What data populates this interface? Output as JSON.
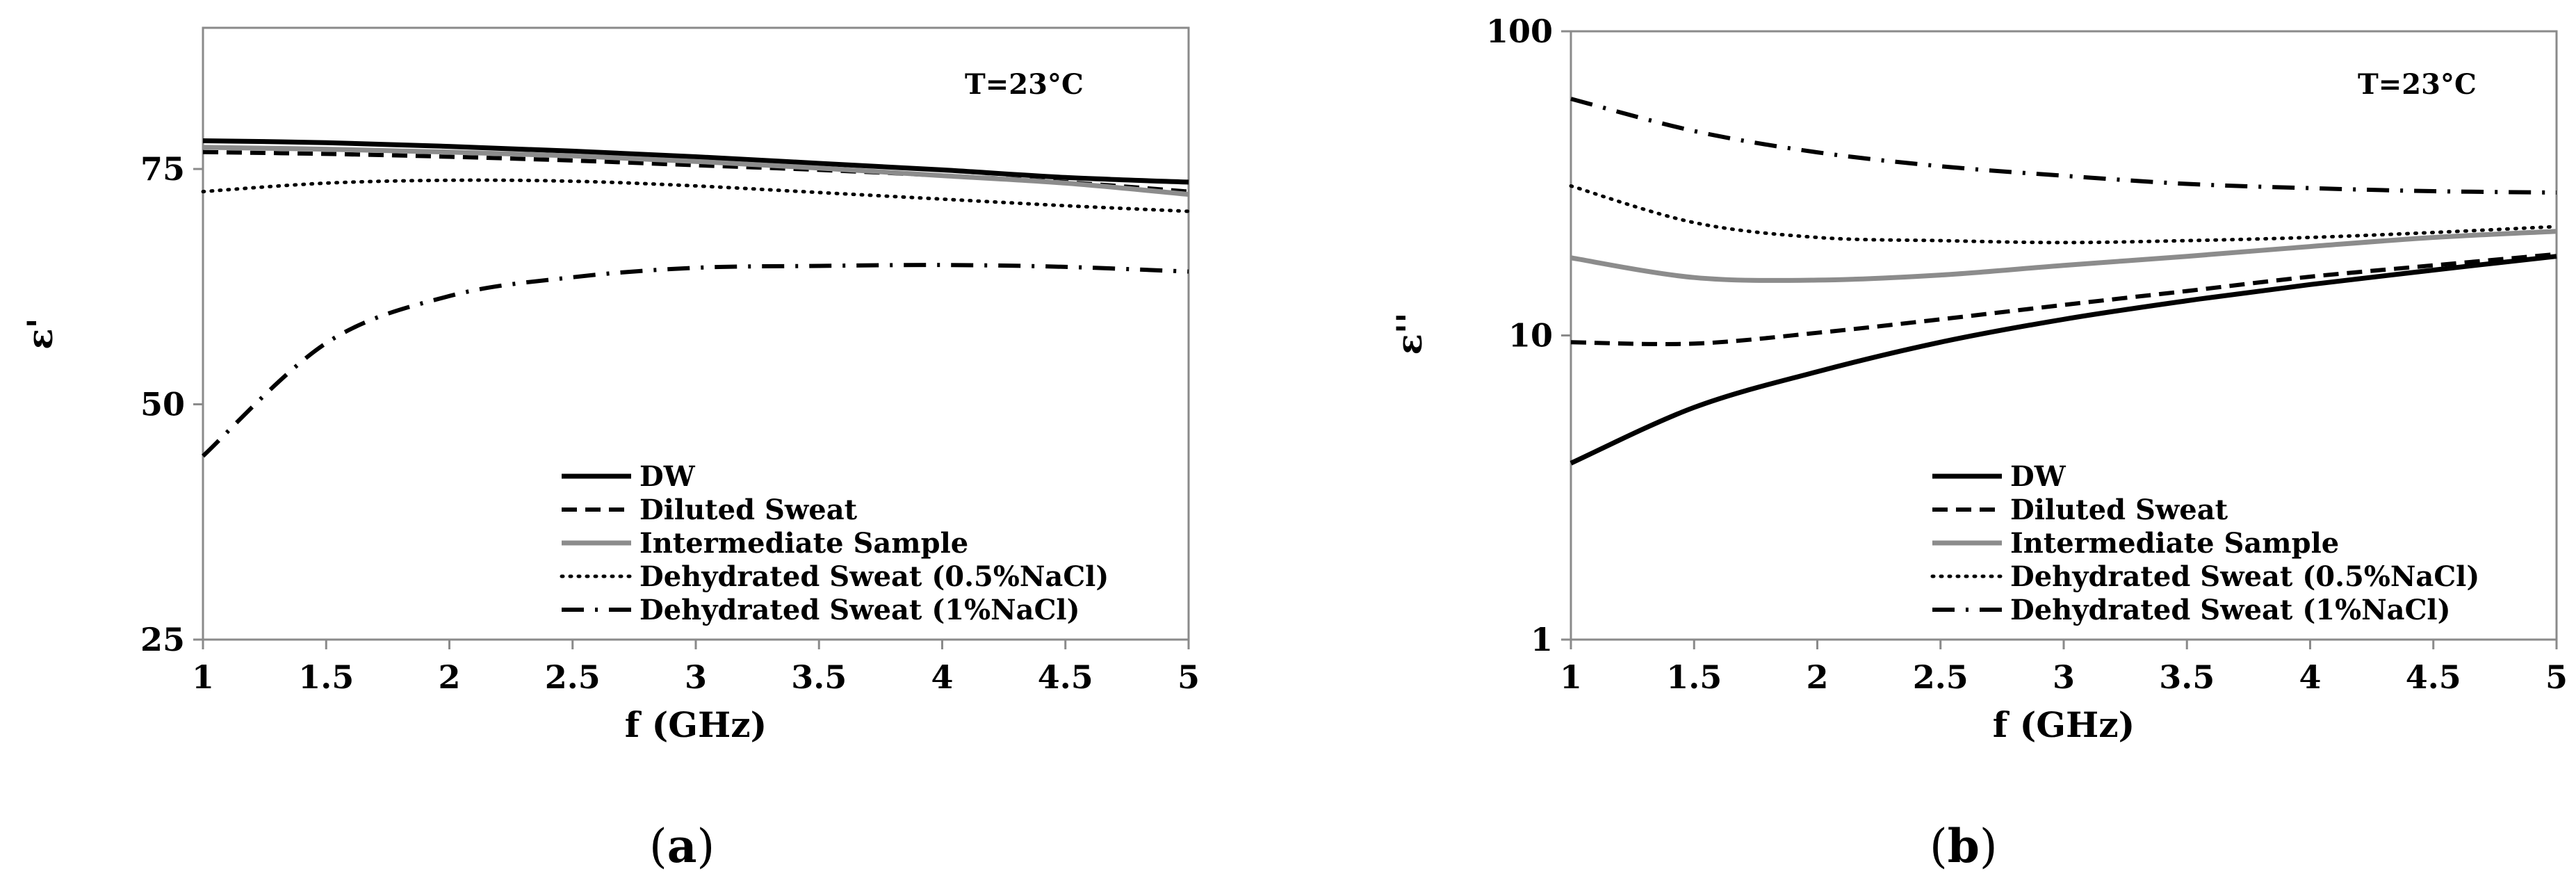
{
  "chart_data": [
    {
      "type": "line",
      "panel": "a",
      "caption_open": "(",
      "caption_letter": "a",
      "caption_close": ")",
      "annotation": "T=23°C",
      "xlabel": "f (GHz)",
      "ylabel": "ε'",
      "xlim": [
        1,
        5
      ],
      "ylim": [
        25,
        90
      ],
      "yscale": "linear",
      "xticks": [
        1,
        1.5,
        2,
        2.5,
        3,
        3.5,
        4,
        4.5,
        5
      ],
      "xtick_labels": [
        "1",
        "1.5",
        "2",
        "2.5",
        "3",
        "3.5",
        "4",
        "4.5",
        "5"
      ],
      "yticks": [
        25,
        50,
        75
      ],
      "ytick_labels": [
        "25",
        "50",
        "75"
      ],
      "legend_position": "bottom-right",
      "x": [
        1,
        1.5,
        2,
        2.5,
        3,
        3.5,
        4,
        4.5,
        5
      ],
      "series": [
        {
          "name": "DW",
          "style": "solid-black",
          "color": "#000000",
          "values": [
            78,
            77.8,
            77.4,
            76.9,
            76.3,
            75.6,
            74.9,
            74.1,
            73.6
          ]
        },
        {
          "name": "Diluted Sweat",
          "style": "dashed-black",
          "color": "#000000",
          "values": [
            76.8,
            76.6,
            76.3,
            75.9,
            75.4,
            74.9,
            74.3,
            73.6,
            72.6
          ]
        },
        {
          "name": "Intermediate Sample",
          "style": "solid-gray",
          "color": "#8c8c8c",
          "values": [
            77.3,
            77.1,
            76.8,
            76.4,
            75.8,
            75.1,
            74.3,
            73.5,
            72.3
          ]
        },
        {
          "name": "Dehydrated Sweat (0.5%NaCl)",
          "style": "dotted-black",
          "color": "#000000",
          "values": [
            72.6,
            73.5,
            73.8,
            73.7,
            73.2,
            72.5,
            71.8,
            71.1,
            70.5
          ]
        },
        {
          "name": "Dehydrated Sweat (1%NaCl)",
          "style": "dashdot-black",
          "color": "#000000",
          "values": [
            44.5,
            56.5,
            61.5,
            63.5,
            64.5,
            64.7,
            64.8,
            64.6,
            64.1
          ]
        }
      ]
    },
    {
      "type": "line",
      "panel": "b",
      "caption_open": "(",
      "caption_letter": "b",
      "caption_close": ")",
      "annotation": "T=23°C",
      "xlabel": "f (GHz)",
      "ylabel": "ε''",
      "xlim": [
        1,
        5
      ],
      "ylim": [
        1,
        100
      ],
      "yscale": "log",
      "xticks": [
        1,
        1.5,
        2,
        2.5,
        3,
        3.5,
        4,
        4.5,
        5
      ],
      "xtick_labels": [
        "1",
        "1.5",
        "2",
        "2.5",
        "3",
        "3.5",
        "4",
        "4.5",
        "5"
      ],
      "yticks": [
        1,
        10,
        100
      ],
      "ytick_labels": [
        "1",
        "10",
        "100"
      ],
      "legend_position": "bottom-right",
      "x": [
        1,
        1.5,
        2,
        2.5,
        3,
        3.5,
        4,
        4.5,
        5
      ],
      "series": [
        {
          "name": "DW",
          "style": "solid-black",
          "color": "#000000",
          "values": [
            3.8,
            5.8,
            7.6,
            9.5,
            11.3,
            13.0,
            14.7,
            16.4,
            18.2
          ]
        },
        {
          "name": "Diluted Sweat",
          "style": "dashed-black",
          "color": "#000000",
          "values": [
            9.5,
            9.4,
            10.2,
            11.3,
            12.6,
            14.0,
            15.6,
            17.0,
            18.5
          ]
        },
        {
          "name": "Intermediate Sample",
          "style": "solid-gray",
          "color": "#8c8c8c",
          "values": [
            18.0,
            15.5,
            15.2,
            15.8,
            17.0,
            18.2,
            19.6,
            21.0,
            22.0
          ]
        },
        {
          "name": "Dehydrated Sweat (0.5%NaCl)",
          "style": "dotted-black",
          "color": "#000000",
          "values": [
            31.0,
            23.5,
            21.0,
            20.5,
            20.2,
            20.5,
            21.0,
            21.8,
            22.8
          ]
        },
        {
          "name": "Dehydrated Sweat (1%NaCl)",
          "style": "dashdot-black",
          "color": "#000000",
          "values": [
            60.0,
            47.0,
            40.0,
            36.0,
            33.5,
            31.5,
            30.5,
            29.8,
            29.5
          ]
        }
      ]
    }
  ]
}
